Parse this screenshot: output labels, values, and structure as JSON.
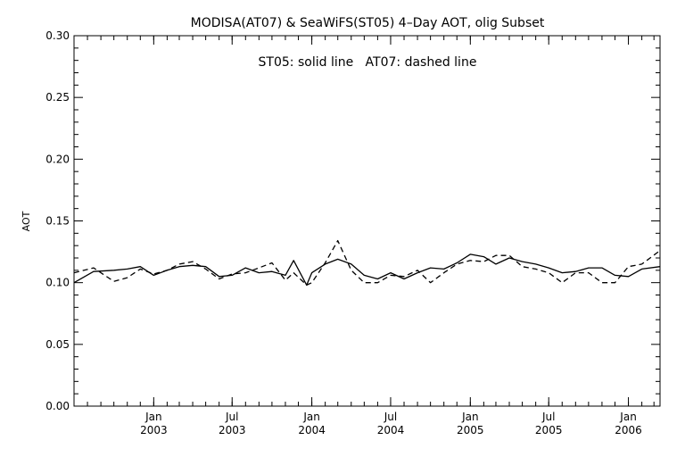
{
  "chart_data": {
    "type": "line",
    "title": "MODISA(AT07) & SeaWiFS(ST05) 4–Day AOT, olig Subset",
    "annotation": "ST05: solid line   AT07: dashed line",
    "xlabel": "",
    "ylabel": "AOT",
    "ylim": [
      0.0,
      0.3
    ],
    "xlim": [
      "2002-07-01",
      "2006-03-15"
    ],
    "yticks": [
      "0.00",
      "0.05",
      "0.10",
      "0.15",
      "0.20",
      "0.25",
      "0.30"
    ],
    "xticks": [
      {
        "date": "2003-01-01",
        "month": "Jan",
        "year": "2003"
      },
      {
        "date": "2003-07-01",
        "month": "Jul",
        "year": "2003"
      },
      {
        "date": "2004-01-01",
        "month": "Jan",
        "year": "2004"
      },
      {
        "date": "2004-07-01",
        "month": "Jul",
        "year": "2004"
      },
      {
        "date": "2005-01-01",
        "month": "Jan",
        "year": "2005"
      },
      {
        "date": "2005-07-01",
        "month": "Jul",
        "year": "2005"
      },
      {
        "date": "2006-01-01",
        "month": "Jan",
        "year": "2006"
      }
    ],
    "grid": false,
    "series": [
      {
        "name": "ST05",
        "style": "solid",
        "color": "#000000",
        "x": [
          "2002-07-01",
          "2002-08-15",
          "2002-10-01",
          "2002-11-01",
          "2002-12-01",
          "2003-01-01",
          "2003-02-01",
          "2003-03-01",
          "2003-04-01",
          "2003-05-01",
          "2003-06-01",
          "2003-07-01",
          "2003-08-01",
          "2003-09-01",
          "2003-10-01",
          "2003-11-01",
          "2003-11-20",
          "2003-12-20",
          "2004-01-01",
          "2004-02-01",
          "2004-03-01",
          "2004-04-01",
          "2004-05-01",
          "2004-06-01",
          "2004-07-01",
          "2004-08-01",
          "2004-09-01",
          "2004-10-01",
          "2004-11-01",
          "2004-12-01",
          "2005-01-01",
          "2005-02-01",
          "2005-03-01",
          "2005-04-01",
          "2005-05-01",
          "2005-06-01",
          "2005-07-01",
          "2005-08-01",
          "2005-09-01",
          "2005-10-01",
          "2005-11-01",
          "2005-12-01",
          "2006-01-01",
          "2006-02-01",
          "2006-03-15"
        ],
        "y": [
          0.1,
          0.109,
          0.11,
          0.111,
          0.113,
          0.106,
          0.11,
          0.113,
          0.114,
          0.113,
          0.105,
          0.106,
          0.112,
          0.108,
          0.109,
          0.106,
          0.118,
          0.098,
          0.108,
          0.115,
          0.119,
          0.115,
          0.106,
          0.103,
          0.108,
          0.103,
          0.108,
          0.112,
          0.111,
          0.116,
          0.123,
          0.121,
          0.115,
          0.12,
          0.117,
          0.115,
          0.112,
          0.108,
          0.109,
          0.112,
          0.112,
          0.106,
          0.105,
          0.111,
          0.113
        ]
      },
      {
        "name": "AT07",
        "style": "dashed",
        "color": "#000000",
        "x": [
          "2002-07-01",
          "2002-08-15",
          "2002-10-01",
          "2002-11-01",
          "2002-12-01",
          "2003-01-01",
          "2003-02-01",
          "2003-03-01",
          "2003-04-01",
          "2003-05-01",
          "2003-06-01",
          "2003-07-01",
          "2003-08-01",
          "2003-09-01",
          "2003-10-01",
          "2003-11-01",
          "2003-11-20",
          "2003-12-20",
          "2004-01-01",
          "2004-02-01",
          "2004-03-01",
          "2004-04-01",
          "2004-05-01",
          "2004-06-01",
          "2004-07-01",
          "2004-08-01",
          "2004-09-01",
          "2004-10-01",
          "2004-11-01",
          "2004-12-01",
          "2005-01-01",
          "2005-02-01",
          "2005-03-01",
          "2005-04-01",
          "2005-05-01",
          "2005-06-01",
          "2005-07-01",
          "2005-08-01",
          "2005-09-01",
          "2005-10-01",
          "2005-11-01",
          "2005-12-01",
          "2006-01-01",
          "2006-02-01",
          "2006-03-15"
        ],
        "y": [
          0.108,
          0.112,
          0.101,
          0.104,
          0.111,
          0.107,
          0.11,
          0.115,
          0.117,
          0.111,
          0.103,
          0.107,
          0.108,
          0.112,
          0.116,
          0.102,
          0.108,
          0.098,
          0.1,
          0.116,
          0.134,
          0.11,
          0.1,
          0.1,
          0.106,
          0.105,
          0.11,
          0.1,
          0.108,
          0.115,
          0.118,
          0.117,
          0.122,
          0.122,
          0.113,
          0.111,
          0.108,
          0.1,
          0.108,
          0.108,
          0.1,
          0.1,
          0.113,
          0.115,
          0.126
        ]
      }
    ]
  }
}
